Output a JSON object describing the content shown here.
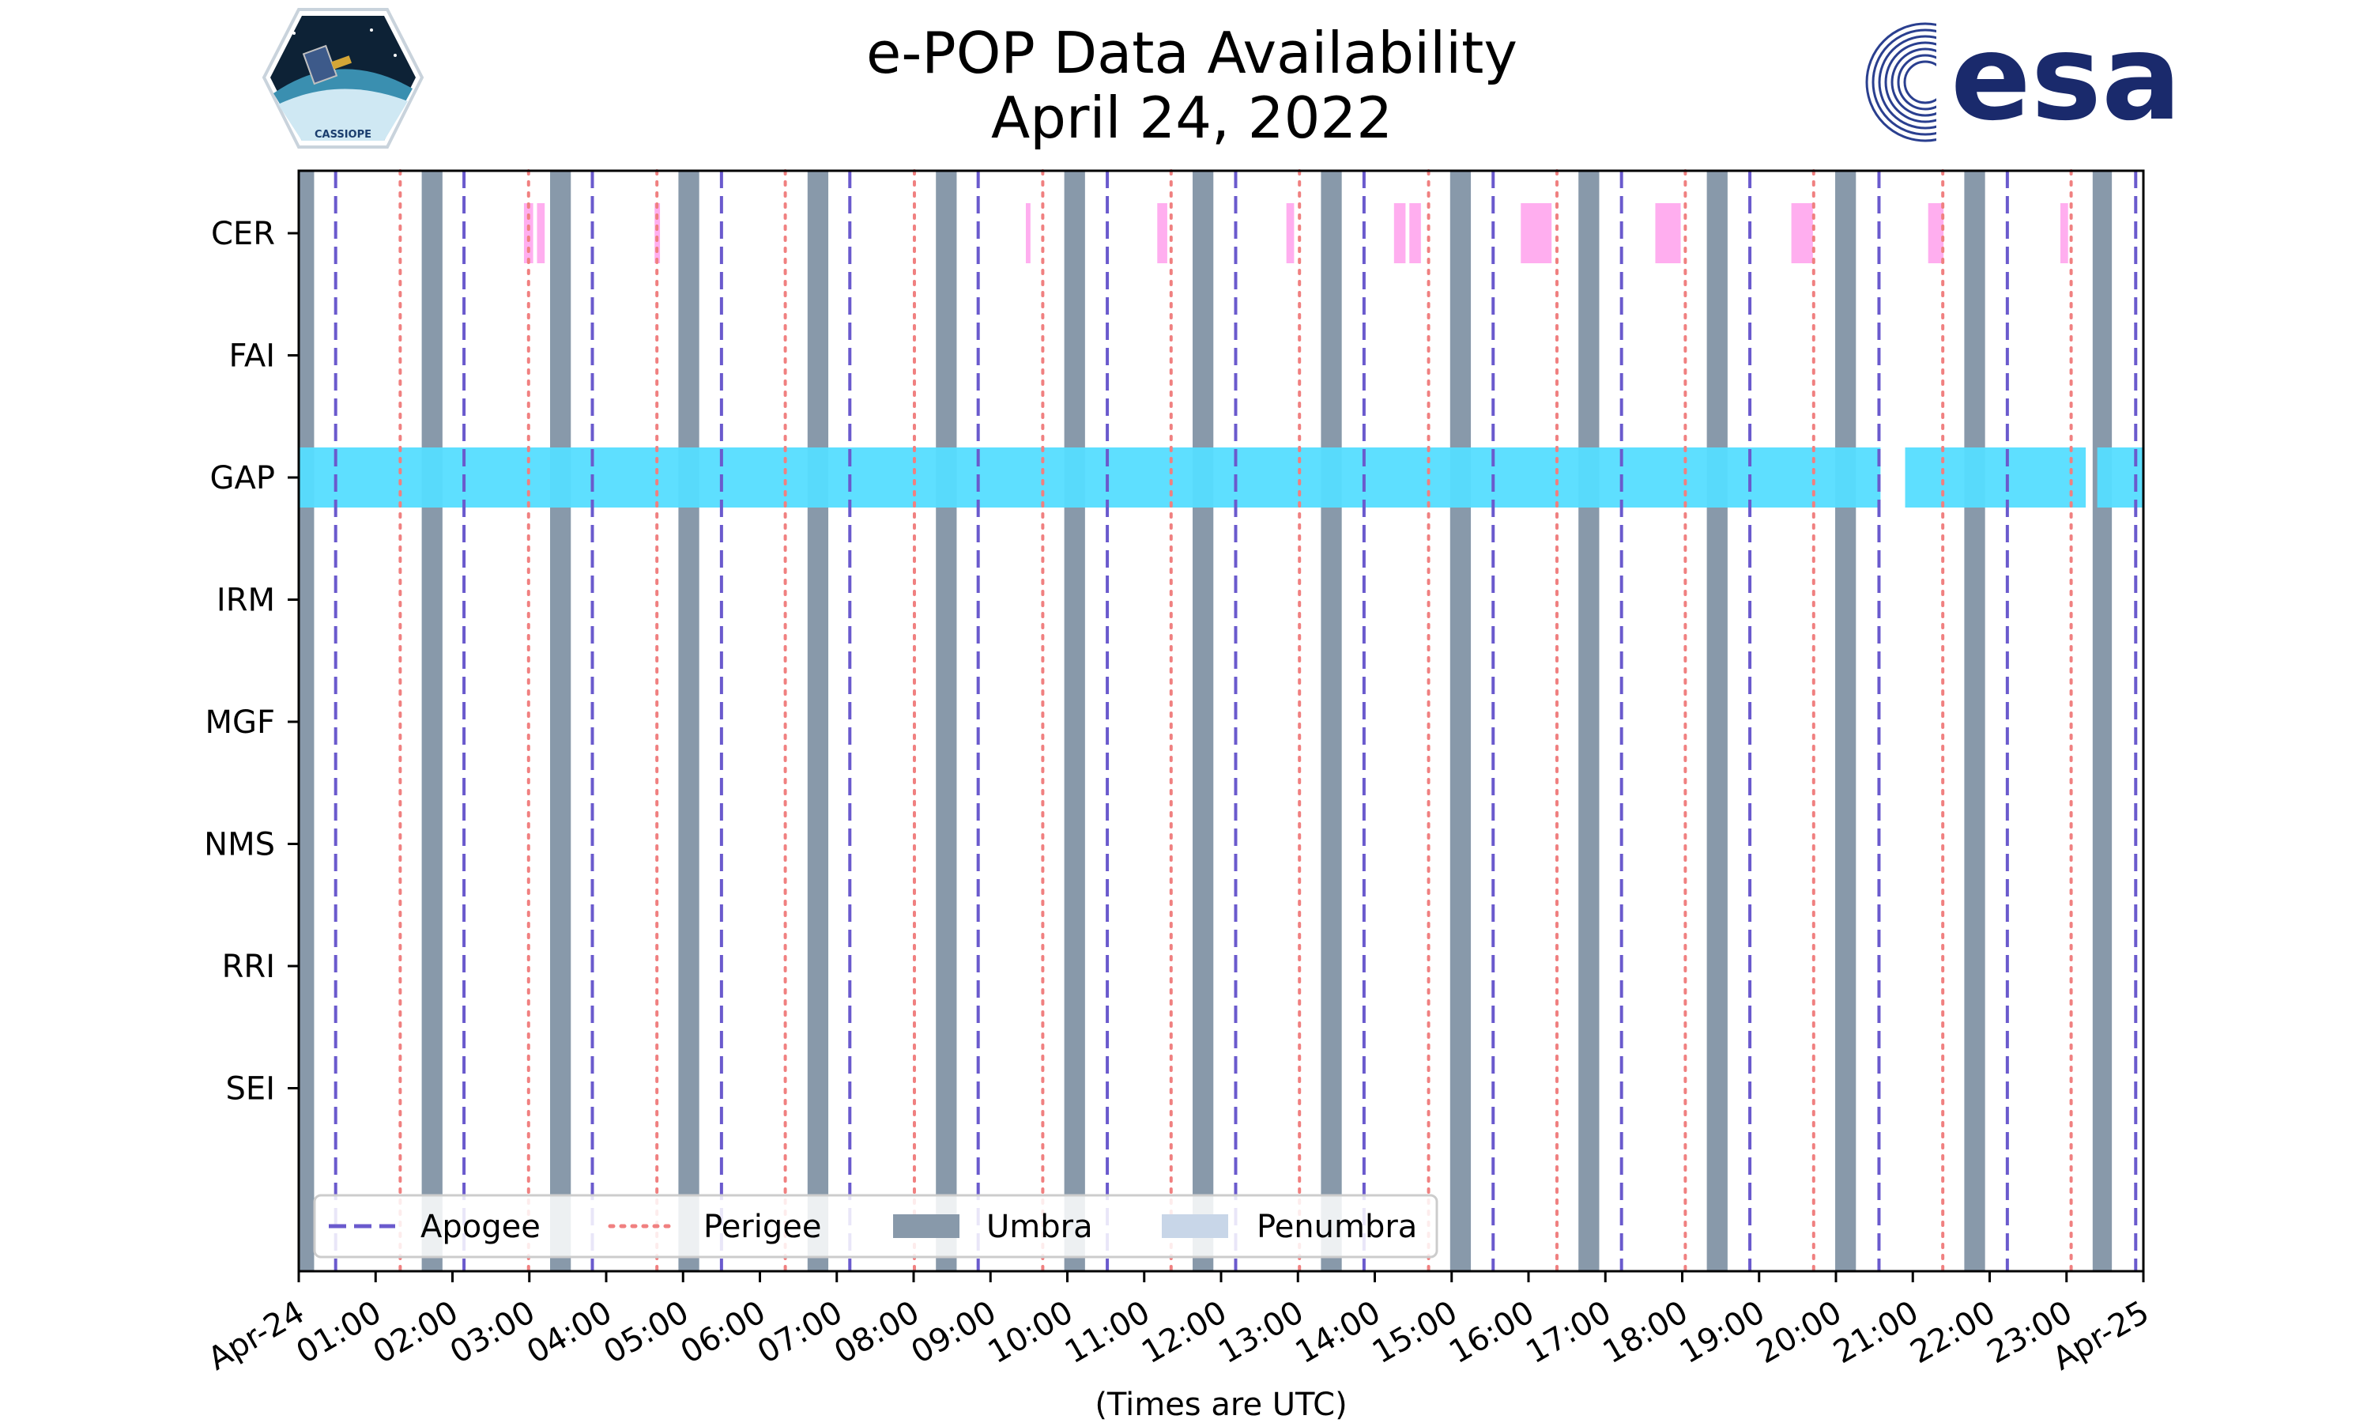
{
  "chart_data": {
    "type": "timeline",
    "title": "e-POP Data Availability",
    "subtitle": "April 24, 2022",
    "xlabel": "(Times are UTC)",
    "x_unit": "hours UTC",
    "xlim": [
      0,
      24
    ],
    "x_tick_labels": [
      "Apr-24",
      "01:00",
      "02:00",
      "03:00",
      "04:00",
      "05:00",
      "06:00",
      "07:00",
      "08:00",
      "09:00",
      "10:00",
      "11:00",
      "12:00",
      "13:00",
      "14:00",
      "15:00",
      "16:00",
      "17:00",
      "18:00",
      "19:00",
      "20:00",
      "21:00",
      "22:00",
      "23:00",
      "Apr-25"
    ],
    "instruments": [
      "CER",
      "FAI",
      "GAP",
      "IRM",
      "MGF",
      "NMS",
      "RRI",
      "SEI"
    ],
    "umbra": [
      [
        0,
        0.2
      ],
      [
        1.6,
        1.87
      ],
      [
        3.27,
        3.54
      ],
      [
        4.94,
        5.21
      ],
      [
        6.62,
        6.89
      ],
      [
        8.29,
        8.56
      ],
      [
        9.96,
        10.23
      ],
      [
        11.63,
        11.9
      ],
      [
        13.3,
        13.57
      ],
      [
        14.98,
        15.25
      ],
      [
        16.65,
        16.92
      ],
      [
        18.32,
        18.59
      ],
      [
        19.99,
        20.26
      ],
      [
        21.67,
        21.94
      ],
      [
        23.34,
        23.59
      ]
    ],
    "apogee": [
      0.48,
      2.15,
      3.82,
      5.5,
      7.17,
      8.84,
      10.52,
      12.19,
      13.86,
      15.54,
      17.21,
      18.88,
      20.56,
      22.23,
      23.9
    ],
    "perigee": [
      1.32,
      2.99,
      4.66,
      6.33,
      8.01,
      9.68,
      11.35,
      13.02,
      14.7,
      16.37,
      18.04,
      19.71,
      21.39,
      23.06
    ],
    "series": [
      {
        "name": "CER",
        "color": "#ffaaee",
        "segments": [
          [
            2.93,
            3.05
          ],
          [
            3.1,
            3.2
          ],
          [
            4.63,
            4.7
          ],
          [
            9.46,
            9.52
          ],
          [
            11.17,
            11.3
          ],
          [
            12.85,
            12.95
          ],
          [
            14.25,
            14.4
          ],
          [
            14.45,
            14.6
          ],
          [
            15.9,
            16.3
          ],
          [
            17.65,
            17.98
          ],
          [
            19.42,
            19.7
          ],
          [
            21.2,
            21.4
          ],
          [
            22.92,
            23.02
          ]
        ]
      },
      {
        "name": "FAI",
        "color": "#55ddff",
        "segments": []
      },
      {
        "name": "GAP",
        "color": "#55ddff",
        "segments": [
          [
            0,
            20.58
          ],
          [
            20.9,
            23.25
          ],
          [
            23.4,
            24
          ]
        ]
      },
      {
        "name": "IRM",
        "color": "#55ddff",
        "segments": []
      },
      {
        "name": "MGF",
        "color": "#55ddff",
        "segments": []
      },
      {
        "name": "NMS",
        "color": "#55ddff",
        "segments": []
      },
      {
        "name": "RRI",
        "color": "#55ddff",
        "segments": []
      },
      {
        "name": "SEI",
        "color": "#55ddff",
        "segments": []
      }
    ],
    "legend": {
      "position": "lower-left",
      "entries": [
        {
          "label": "Apogee",
          "style": "dashed",
          "color": "#6a5acd"
        },
        {
          "label": "Perigee",
          "style": "dotted",
          "color": "#f08080"
        },
        {
          "label": "Umbra",
          "style": "patch",
          "color": "#8899aa"
        },
        {
          "label": "Penumbra",
          "style": "patch",
          "color": "#c8d6e8"
        }
      ]
    }
  },
  "logos": {
    "left_badge_text": "CASSIOPE",
    "right_brand": "esa"
  }
}
